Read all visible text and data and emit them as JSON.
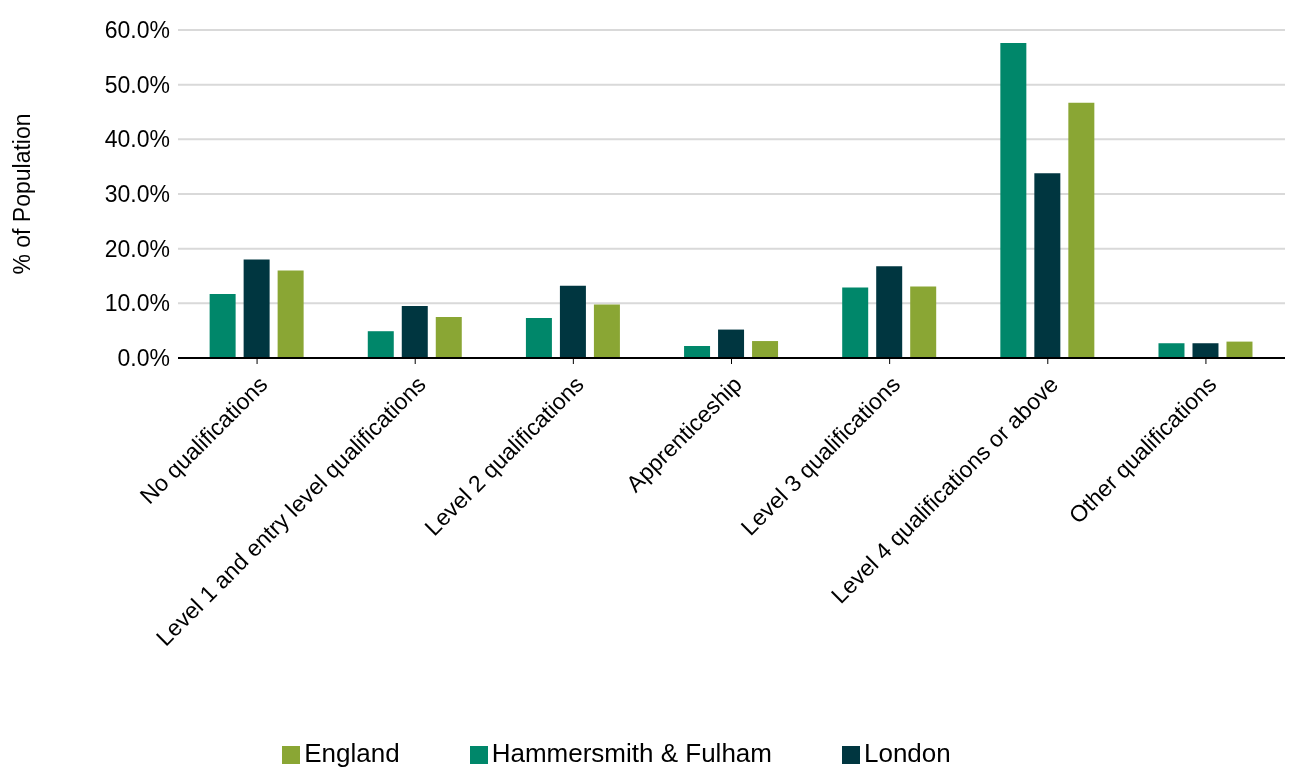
{
  "chart_data": {
    "type": "bar",
    "ylabel": "% of Population",
    "categories": [
      "No qualifications",
      "Level 1 and entry level qualifications",
      "Level 2 qualifications",
      "Apprenticeship",
      "Level 3 qualifications",
      "Level 4 qualifications or above",
      "Other qualifications"
    ],
    "series": [
      {
        "name": "Hammersmith & Fulham",
        "color": "#00876a",
        "values": [
          11.7,
          4.9,
          7.3,
          2.2,
          12.9,
          57.6,
          2.7
        ]
      },
      {
        "name": "London",
        "color": "#003640",
        "values": [
          18.0,
          9.5,
          13.2,
          5.2,
          16.8,
          33.8,
          2.7
        ]
      },
      {
        "name": "England",
        "color": "#8aa634",
        "values": [
          16.0,
          7.5,
          9.8,
          3.1,
          13.1,
          46.7,
          3.0
        ]
      }
    ],
    "ylim": [
      0,
      60
    ],
    "yticks": [
      {
        "value": 0,
        "label": "0.0%"
      },
      {
        "value": 10,
        "label": "10.0%"
      },
      {
        "value": 20,
        "label": "20.0%"
      },
      {
        "value": 30,
        "label": "30.0%"
      },
      {
        "value": 40,
        "label": "40.0%"
      },
      {
        "value": 50,
        "label": "50.0%"
      },
      {
        "value": 60,
        "label": "60.0%"
      }
    ],
    "grid": "y",
    "legend": "bottom"
  }
}
